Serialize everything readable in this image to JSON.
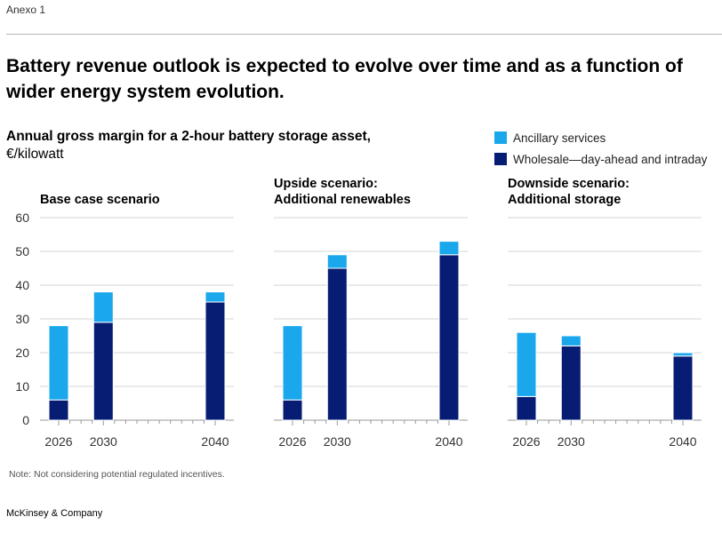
{
  "exhibit_label": "Anexo 1",
  "headline": "Battery revenue outlook is expected to evolve over time and as a function of wider energy system evolution.",
  "subtitle": {
    "bold": "Annual gross margin for a 2-hour battery storage asset,",
    "unit": "€/kilowatt"
  },
  "legend": [
    {
      "label": "Ancillary services",
      "color": "#1aa7ec"
    },
    {
      "label": "Wholesale—day-ahead and intraday",
      "color": "#071d73"
    }
  ],
  "chart_data": [
    {
      "type": "bar",
      "stacked": true,
      "title": "Base case scenario",
      "x": [
        2026,
        2030,
        2040
      ],
      "x_tick_labels": [
        "2026",
        "2030",
        "2040"
      ],
      "ylim": [
        0,
        60
      ],
      "y_ticks": [
        0,
        10,
        20,
        30,
        40,
        50,
        60
      ],
      "grid": true,
      "series": [
        {
          "name": "Wholesale—day-ahead and intraday",
          "color": "#071d73",
          "values": [
            6,
            29,
            35
          ]
        },
        {
          "name": "Ancillary services",
          "color": "#1aa7ec",
          "values": [
            22,
            9,
            3
          ]
        }
      ]
    },
    {
      "type": "bar",
      "stacked": true,
      "title": "Upside scenario:\nAdditional renewables",
      "x": [
        2026,
        2030,
        2040
      ],
      "x_tick_labels": [
        "2026",
        "2030",
        "2040"
      ],
      "ylim": [
        0,
        60
      ],
      "y_ticks": [
        0,
        10,
        20,
        30,
        40,
        50,
        60
      ],
      "grid": true,
      "series": [
        {
          "name": "Wholesale—day-ahead and intraday",
          "color": "#071d73",
          "values": [
            6,
            45,
            49
          ]
        },
        {
          "name": "Ancillary services",
          "color": "#1aa7ec",
          "values": [
            22,
            4,
            4
          ]
        }
      ]
    },
    {
      "type": "bar",
      "stacked": true,
      "title": "Downside scenario:\nAdditional storage",
      "x": [
        2026,
        2030,
        2040
      ],
      "x_tick_labels": [
        "2026",
        "2030",
        "2040"
      ],
      "ylim": [
        0,
        60
      ],
      "y_ticks": [
        0,
        10,
        20,
        30,
        40,
        50,
        60
      ],
      "grid": true,
      "series": [
        {
          "name": "Wholesale—day-ahead and intraday",
          "color": "#071d73",
          "values": [
            7,
            22,
            19
          ]
        },
        {
          "name": "Ancillary services",
          "color": "#1aa7ec",
          "values": [
            19,
            3,
            1
          ]
        }
      ]
    }
  ],
  "note": "Note: Not considering potential regulated incentives.",
  "source": "McKinsey & Company"
}
